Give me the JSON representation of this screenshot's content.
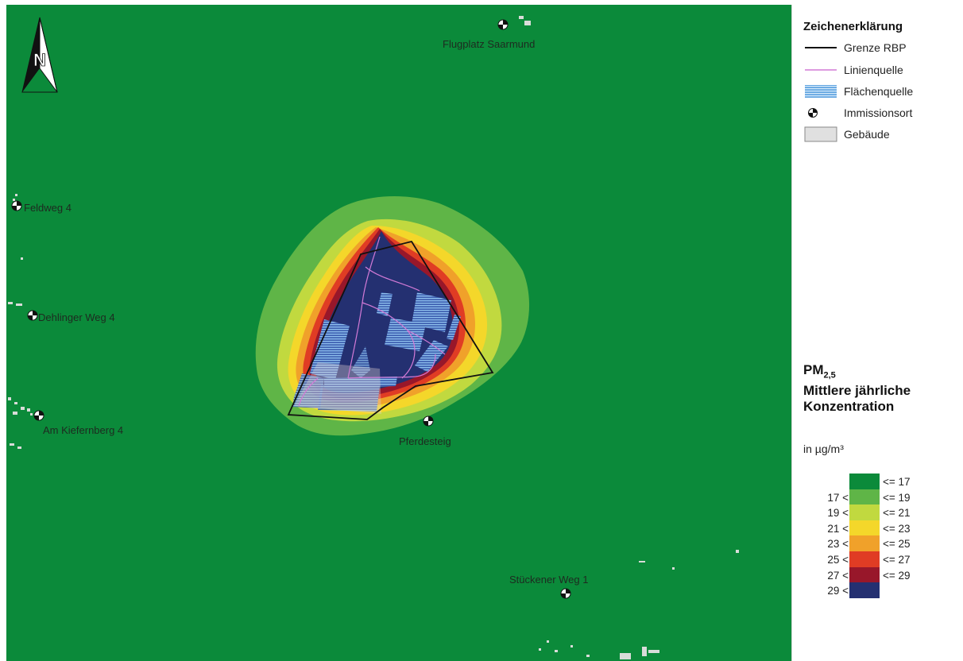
{
  "map": {
    "background_color": "#0b8a3a",
    "north_arrow": {
      "letter": "N",
      "icon": "north-arrow-icon"
    },
    "receptors": [
      {
        "id": "flugplatz",
        "label": "Flugplatz Saarmund"
      },
      {
        "id": "feldweg",
        "label": "Feldweg 4"
      },
      {
        "id": "dehlinger",
        "label": "Dehlinger Weg 4"
      },
      {
        "id": "kiefernberg",
        "label": "Am Kiefernberg 4"
      },
      {
        "id": "pferdesteig",
        "label": "Pferdesteig"
      },
      {
        "id": "stueckener",
        "label": "Stückener Weg 1"
      }
    ]
  },
  "legend": {
    "title": "Zeichenerklärung",
    "items": [
      {
        "label": "Grenze RBP",
        "icon": "black-line-icon",
        "color": "#111111"
      },
      {
        "label": "Linienquelle",
        "icon": "pink-line-icon",
        "color": "#d27ad6"
      },
      {
        "label": "Flächenquelle",
        "icon": "blue-hatch-icon",
        "color": "#5fa3e0"
      },
      {
        "label": "Immissionsort",
        "icon": "receptor-marker-icon",
        "color": "#000000"
      },
      {
        "label": "Gebäude",
        "icon": "building-icon",
        "color": "#e0e0e0"
      }
    ]
  },
  "concentration_scale": {
    "pollutant": "PM",
    "pollutant_subscript": "2,5",
    "title_line1": "Mittlere jährliche",
    "title_line2": "Konzentration",
    "unit": "in µg/m³",
    "classes": [
      {
        "lower": "",
        "upper": "<=  17",
        "color": "#0b8a3a"
      },
      {
        "lower": "17 <",
        "upper": "<=  19",
        "color": "#5fb547"
      },
      {
        "lower": "19 <",
        "upper": "<=  21",
        "color": "#c1d93f"
      },
      {
        "lower": "21 <",
        "upper": "<=  23",
        "color": "#f4d72a"
      },
      {
        "lower": "23 <",
        "upper": "<=  25",
        "color": "#f0a12a"
      },
      {
        "lower": "25 <",
        "upper": "<=  27",
        "color": "#e03c24"
      },
      {
        "lower": "27 <",
        "upper": "<=  29",
        "color": "#98172a"
      },
      {
        "lower": "29 <",
        "upper": "",
        "color": "#243071"
      }
    ]
  }
}
